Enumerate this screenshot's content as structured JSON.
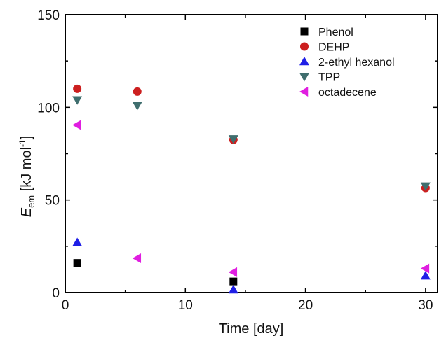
{
  "chart_data": {
    "type": "scatter",
    "title": "",
    "xlabel": "Time [day]",
    "ylabel": {
      "symbol": "E",
      "subscript": "em",
      "unit_open": " [kJ mol",
      "superscript": "-1",
      "unit_close": "]"
    },
    "xlim": [
      0,
      31
    ],
    "ylim": [
      0,
      150
    ],
    "xticks": [
      0,
      10,
      20,
      30
    ],
    "yticks": [
      0,
      50,
      100,
      150
    ],
    "grid": false,
    "legend_position": "top-right",
    "series": [
      {
        "name": "Phenol",
        "marker": "square",
        "color": "#000000",
        "points": [
          [
            1,
            16
          ],
          [
            14,
            6
          ],
          [
            30,
            null
          ]
        ]
      },
      {
        "name": "DEHP",
        "marker": "circle",
        "color": "#cc1f1f",
        "points": [
          [
            1,
            110
          ],
          [
            6,
            108.5
          ],
          [
            14,
            82.5
          ],
          [
            30,
            56.5
          ]
        ]
      },
      {
        "name": "2-ethyl hexanol",
        "marker": "triangle-up",
        "color": "#1f1fe6",
        "points": [
          [
            1,
            27
          ],
          [
            14,
            1.5
          ],
          [
            30,
            9
          ]
        ]
      },
      {
        "name": "TPP",
        "marker": "triangle-down",
        "color": "#3f6e6e",
        "points": [
          [
            1,
            104
          ],
          [
            6,
            101
          ],
          [
            14,
            83
          ],
          [
            30,
            57.5
          ]
        ]
      },
      {
        "name": "octadecene",
        "marker": "triangle-left",
        "color": "#e01ee0",
        "points": [
          [
            1,
            90.5
          ],
          [
            6,
            18.5
          ],
          [
            14,
            11
          ],
          [
            30,
            13
          ]
        ]
      }
    ]
  }
}
